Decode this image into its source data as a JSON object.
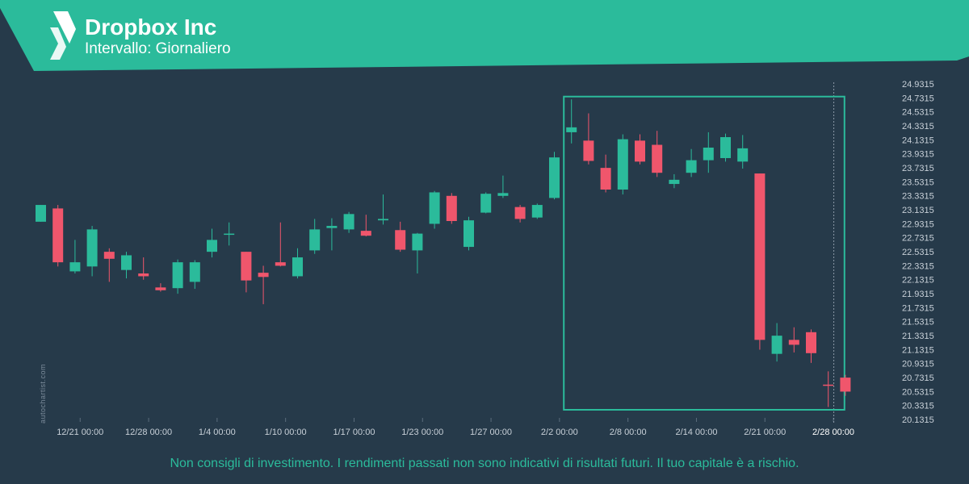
{
  "header": {
    "title": "Dropbox Inc",
    "subtitle": "Intervallo: Giornaliero",
    "logo_icon": "autochartist-logo-icon",
    "bg_color": "#2bbb9b"
  },
  "watermark": "autochartist.com",
  "disclaimer": "Non consigli di investimento. I rendimenti passati non sono indicativi di risultati futuri. Il tuo capitale è a rischio.",
  "colors": {
    "background": "#263a4a",
    "up": "#2bbb9b",
    "down": "#f0566c",
    "pattern_box": "#2bbb9b",
    "axis_text": "#c8d0d8"
  },
  "chart_data": {
    "type": "candlestick",
    "y_ticks": [
      "24.9315",
      "24.7315",
      "24.5315",
      "24.3315",
      "24.1315",
      "23.9315",
      "23.7315",
      "23.5315",
      "23.3315",
      "23.1315",
      "22.9315",
      "22.7315",
      "22.5315",
      "22.3315",
      "22.1315",
      "21.9315",
      "21.7315",
      "21.5315",
      "21.3315",
      "21.1315",
      "20.9315",
      "20.7315",
      "20.5315",
      "20.3315",
      "20.1315"
    ],
    "ylim": [
      20.1315,
      24.9315
    ],
    "x_ticks": [
      {
        "label": "12/21 00:00",
        "index": 2.3
      },
      {
        "label": "12/28 00:00",
        "index": 6.3
      },
      {
        "label": "1/4 00:00",
        "index": 10.3
      },
      {
        "label": "1/10 00:00",
        "index": 14.3
      },
      {
        "label": "1/17 00:00",
        "index": 18.3
      },
      {
        "label": "1/23 00:00",
        "index": 22.3
      },
      {
        "label": "1/27 00:00",
        "index": 26.3
      },
      {
        "label": "2/2 00:00",
        "index": 30.3
      },
      {
        "label": "2/8 00:00",
        "index": 34.3
      },
      {
        "label": "2/14 00:00",
        "index": 38.3
      },
      {
        "label": "2/21 00:00",
        "index": 42.3
      },
      {
        "label": "2/28 00:00",
        "index": 46.3,
        "highlight": true
      }
    ],
    "pattern_box": {
      "start_index": 30.6,
      "end_index": 46.9,
      "high": 24.75,
      "low": 20.27
    },
    "candles": [
      {
        "o": 22.96,
        "h": 23.2,
        "l": 22.96,
        "c": 23.2
      },
      {
        "o": 23.15,
        "h": 23.2,
        "l": 22.32,
        "c": 22.38
      },
      {
        "o": 22.25,
        "h": 22.7,
        "l": 22.22,
        "c": 22.38
      },
      {
        "o": 22.32,
        "h": 22.9,
        "l": 22.18,
        "c": 22.85
      },
      {
        "o": 22.53,
        "h": 22.58,
        "l": 22.1,
        "c": 22.43
      },
      {
        "o": 22.27,
        "h": 22.53,
        "l": 22.15,
        "c": 22.48
      },
      {
        "o": 22.22,
        "h": 22.45,
        "l": 22.13,
        "c": 22.18
      },
      {
        "o": 22.02,
        "h": 22.08,
        "l": 21.96,
        "c": 21.98
      },
      {
        "o": 22.01,
        "h": 22.42,
        "l": 21.93,
        "c": 22.38
      },
      {
        "o": 22.1,
        "h": 22.41,
        "l": 22.0,
        "c": 22.38
      },
      {
        "o": 22.53,
        "h": 22.86,
        "l": 22.45,
        "c": 22.7
      },
      {
        "o": 22.78,
        "h": 22.95,
        "l": 22.62,
        "c": 22.79
      },
      {
        "o": 22.53,
        "h": 22.53,
        "l": 21.95,
        "c": 22.12
      },
      {
        "o": 22.23,
        "h": 22.33,
        "l": 21.78,
        "c": 22.17
      },
      {
        "o": 22.38,
        "h": 22.95,
        "l": 22.32,
        "c": 22.33
      },
      {
        "o": 22.18,
        "h": 22.58,
        "l": 22.15,
        "c": 22.45
      },
      {
        "o": 22.55,
        "h": 23.0,
        "l": 22.5,
        "c": 22.85
      },
      {
        "o": 22.87,
        "h": 23.01,
        "l": 22.55,
        "c": 22.9
      },
      {
        "o": 22.85,
        "h": 23.1,
        "l": 22.8,
        "c": 23.07
      },
      {
        "o": 22.83,
        "h": 23.06,
        "l": 22.75,
        "c": 22.76
      },
      {
        "o": 22.98,
        "h": 23.35,
        "l": 22.92,
        "c": 23.0
      },
      {
        "o": 22.84,
        "h": 22.96,
        "l": 22.53,
        "c": 22.56
      },
      {
        "o": 22.55,
        "h": 22.8,
        "l": 22.22,
        "c": 22.79
      },
      {
        "o": 22.93,
        "h": 23.4,
        "l": 22.86,
        "c": 23.38
      },
      {
        "o": 23.33,
        "h": 23.37,
        "l": 22.93,
        "c": 22.97
      },
      {
        "o": 22.6,
        "h": 23.03,
        "l": 22.55,
        "c": 22.98
      },
      {
        "o": 23.09,
        "h": 23.38,
        "l": 23.08,
        "c": 23.36
      },
      {
        "o": 23.33,
        "h": 23.62,
        "l": 23.3,
        "c": 23.37
      },
      {
        "o": 23.17,
        "h": 23.2,
        "l": 22.95,
        "c": 23.0
      },
      {
        "o": 23.02,
        "h": 23.22,
        "l": 23.0,
        "c": 23.2
      },
      {
        "o": 23.3,
        "h": 23.96,
        "l": 23.28,
        "c": 23.88
      },
      {
        "o": 24.24,
        "h": 24.71,
        "l": 24.08,
        "c": 24.31
      },
      {
        "o": 24.12,
        "h": 24.51,
        "l": 23.78,
        "c": 23.83
      },
      {
        "o": 23.73,
        "h": 23.92,
        "l": 23.38,
        "c": 23.42
      },
      {
        "o": 23.42,
        "h": 24.21,
        "l": 23.35,
        "c": 24.14
      },
      {
        "o": 24.12,
        "h": 24.21,
        "l": 23.78,
        "c": 23.82
      },
      {
        "o": 24.06,
        "h": 24.26,
        "l": 23.6,
        "c": 23.66
      },
      {
        "o": 23.5,
        "h": 23.64,
        "l": 23.44,
        "c": 23.56
      },
      {
        "o": 23.66,
        "h": 24.0,
        "l": 23.6,
        "c": 23.84
      },
      {
        "o": 23.84,
        "h": 24.24,
        "l": 23.66,
        "c": 24.02
      },
      {
        "o": 23.87,
        "h": 24.22,
        "l": 23.82,
        "c": 24.17
      },
      {
        "o": 23.82,
        "h": 24.2,
        "l": 23.72,
        "c": 24.01
      },
      {
        "o": 23.65,
        "h": 23.65,
        "l": 21.13,
        "c": 21.27
      },
      {
        "o": 21.07,
        "h": 21.51,
        "l": 20.96,
        "c": 21.33
      },
      {
        "o": 21.27,
        "h": 21.45,
        "l": 21.09,
        "c": 21.2
      },
      {
        "o": 21.38,
        "h": 21.42,
        "l": 20.94,
        "c": 21.08
      },
      {
        "o": 20.63,
        "h": 20.82,
        "l": 20.31,
        "c": 20.62
      },
      {
        "o": 20.73,
        "h": 20.77,
        "l": 20.47,
        "c": 20.53
      }
    ]
  }
}
